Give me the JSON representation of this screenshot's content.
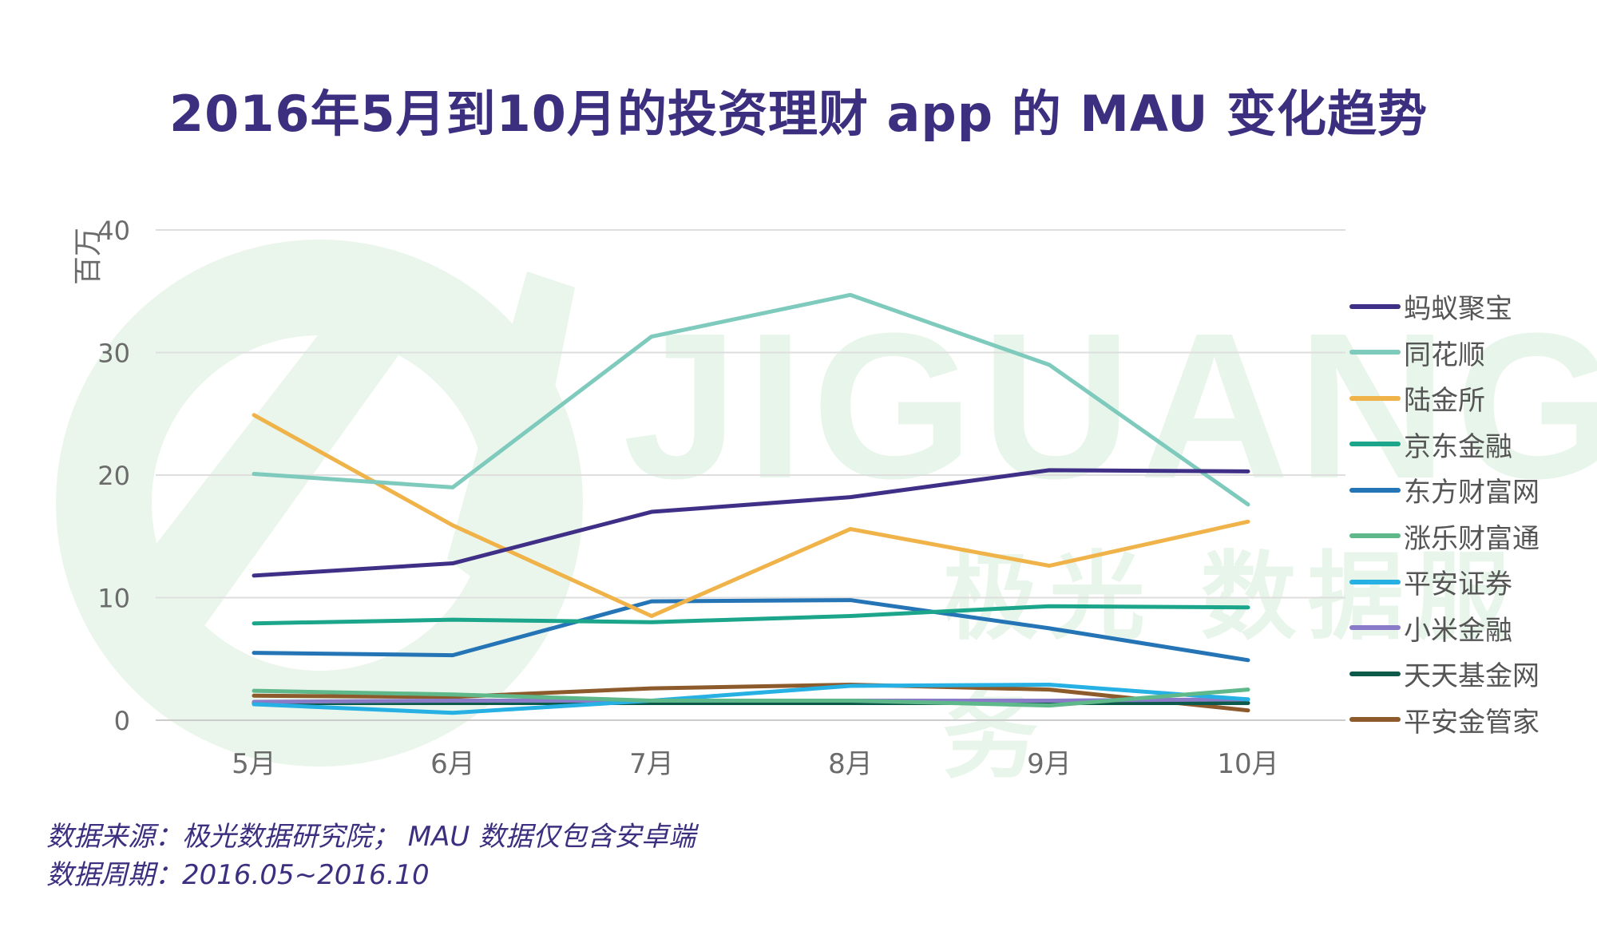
{
  "title": "2016年5月到10月的投资理财 app 的 MAU 变化趋势",
  "watermark": {
    "text": "JIGUANG",
    "sub": "极光 数据服务"
  },
  "footer": {
    "source": "数据来源：极光数据研究院； MAU 数据仅包含安卓端",
    "period": "数据周期：2016.05~2016.10"
  },
  "chart_data": {
    "type": "line",
    "ylabel": "百万",
    "xlabel": "",
    "ylim": [
      0,
      40
    ],
    "yticks": [
      0,
      10,
      20,
      30,
      40
    ],
    "grid": true,
    "legend": "right",
    "categories": [
      "5月",
      "6月",
      "7月",
      "8月",
      "9月",
      "10月"
    ],
    "series": [
      {
        "name": "蚂蚁聚宝",
        "color": "#3f2f86",
        "values": [
          11.8,
          12.8,
          17.0,
          18.2,
          20.4,
          20.3
        ]
      },
      {
        "name": "同花顺",
        "color": "#7ecabc",
        "values": [
          20.1,
          19.0,
          31.3,
          34.7,
          29.0,
          17.6
        ]
      },
      {
        "name": "陆金所",
        "color": "#f0b34a",
        "values": [
          24.9,
          15.9,
          8.5,
          15.6,
          12.6,
          16.2
        ]
      },
      {
        "name": "京东金融",
        "color": "#1ba58a",
        "values": [
          7.9,
          8.2,
          8.0,
          8.5,
          9.3,
          9.2
        ]
      },
      {
        "name": "东方财富网",
        "color": "#2474b6",
        "values": [
          5.5,
          5.3,
          9.7,
          9.8,
          7.5,
          4.9
        ]
      },
      {
        "name": "涨乐财富通",
        "color": "#5eb88a",
        "values": [
          2.4,
          2.1,
          1.6,
          1.6,
          1.2,
          2.5
        ]
      },
      {
        "name": "平安证券",
        "color": "#26b0e3",
        "values": [
          1.3,
          0.6,
          1.6,
          2.8,
          2.9,
          1.7
        ]
      },
      {
        "name": "小米金融",
        "color": "#8a7bc8",
        "values": [
          1.5,
          1.6,
          1.6,
          1.6,
          1.6,
          1.7
        ]
      },
      {
        "name": "天天基金网",
        "color": "#0e5a4a",
        "values": [
          1.4,
          1.4,
          1.4,
          1.4,
          1.4,
          1.4
        ]
      },
      {
        "name": "平安金管家",
        "color": "#8c5a2b",
        "values": [
          2.0,
          1.9,
          2.6,
          2.9,
          2.5,
          0.8
        ]
      }
    ]
  }
}
